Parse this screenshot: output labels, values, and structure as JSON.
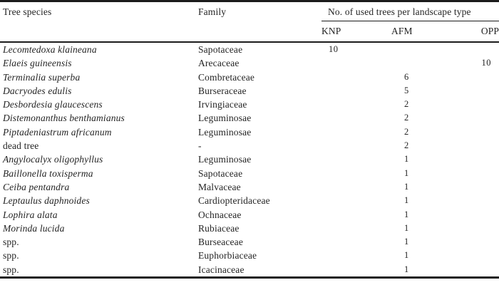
{
  "table": {
    "header": {
      "species": "Tree species",
      "family": "Family",
      "group": "No. of used trees per landscape type",
      "subcolumns": [
        "KNP",
        "AFM",
        "OPP"
      ]
    },
    "rows": [
      {
        "species": "Lecomtedoxa klaineana",
        "italic": true,
        "family": "Sapotaceae",
        "knp": "10",
        "afm": "",
        "opp": ""
      },
      {
        "species": "Elaeis guineensis",
        "italic": true,
        "family": "Arecaceae",
        "knp": "",
        "afm": "",
        "opp": "10"
      },
      {
        "species": "Terminalia superba",
        "italic": true,
        "family": "Combretaceae",
        "knp": "",
        "afm": "6",
        "opp": ""
      },
      {
        "species": "Dacryodes edulis",
        "italic": true,
        "family": "Burseraceae",
        "knp": "",
        "afm": "5",
        "opp": ""
      },
      {
        "species": "Desbordesia glaucescens",
        "italic": true,
        "family": "Irvingiaceae",
        "knp": "",
        "afm": "2",
        "opp": ""
      },
      {
        "species": "Distemonanthus benthamianus",
        "italic": true,
        "family": "Leguminosae",
        "knp": "",
        "afm": "2",
        "opp": ""
      },
      {
        "species": "Piptadeniastrum africanum",
        "italic": true,
        "family": "Leguminosae",
        "knp": "",
        "afm": "2",
        "opp": ""
      },
      {
        "species": "dead tree",
        "italic": false,
        "family": "-",
        "knp": "",
        "afm": "2",
        "opp": ""
      },
      {
        "species": "Angylocalyx oligophyllus",
        "italic": true,
        "family": "Leguminosae",
        "knp": "",
        "afm": "1",
        "opp": ""
      },
      {
        "species": "Baillonella toxisperma",
        "italic": true,
        "family": "Sapotaceae",
        "knp": "",
        "afm": "1",
        "opp": ""
      },
      {
        "species": "Ceiba pentandra",
        "italic": true,
        "family": "Malvaceae",
        "knp": "",
        "afm": "1",
        "opp": ""
      },
      {
        "species": "Leptaulus daphnoides",
        "italic": true,
        "family": "Cardiopteridaceae",
        "knp": "",
        "afm": "1",
        "opp": ""
      },
      {
        "species": "Lophira alata",
        "italic": true,
        "family": "Ochnaceae",
        "knp": "",
        "afm": "1",
        "opp": ""
      },
      {
        "species": "Morinda lucida",
        "italic": true,
        "family": "Rubiaceae",
        "knp": "",
        "afm": "1",
        "opp": ""
      },
      {
        "species": "spp.",
        "italic": false,
        "family": "Burseaceae",
        "knp": "",
        "afm": "1",
        "opp": ""
      },
      {
        "species": "spp.",
        "italic": false,
        "family": "Euphorbiaceae",
        "knp": "",
        "afm": "1",
        "opp": ""
      },
      {
        "species": "spp.",
        "italic": false,
        "family": "Icacinaceae",
        "knp": "",
        "afm": "1",
        "opp": ""
      }
    ],
    "colors": {
      "text": "#242424",
      "rule": "#1c1c1c",
      "background": "#ffffff"
    }
  }
}
